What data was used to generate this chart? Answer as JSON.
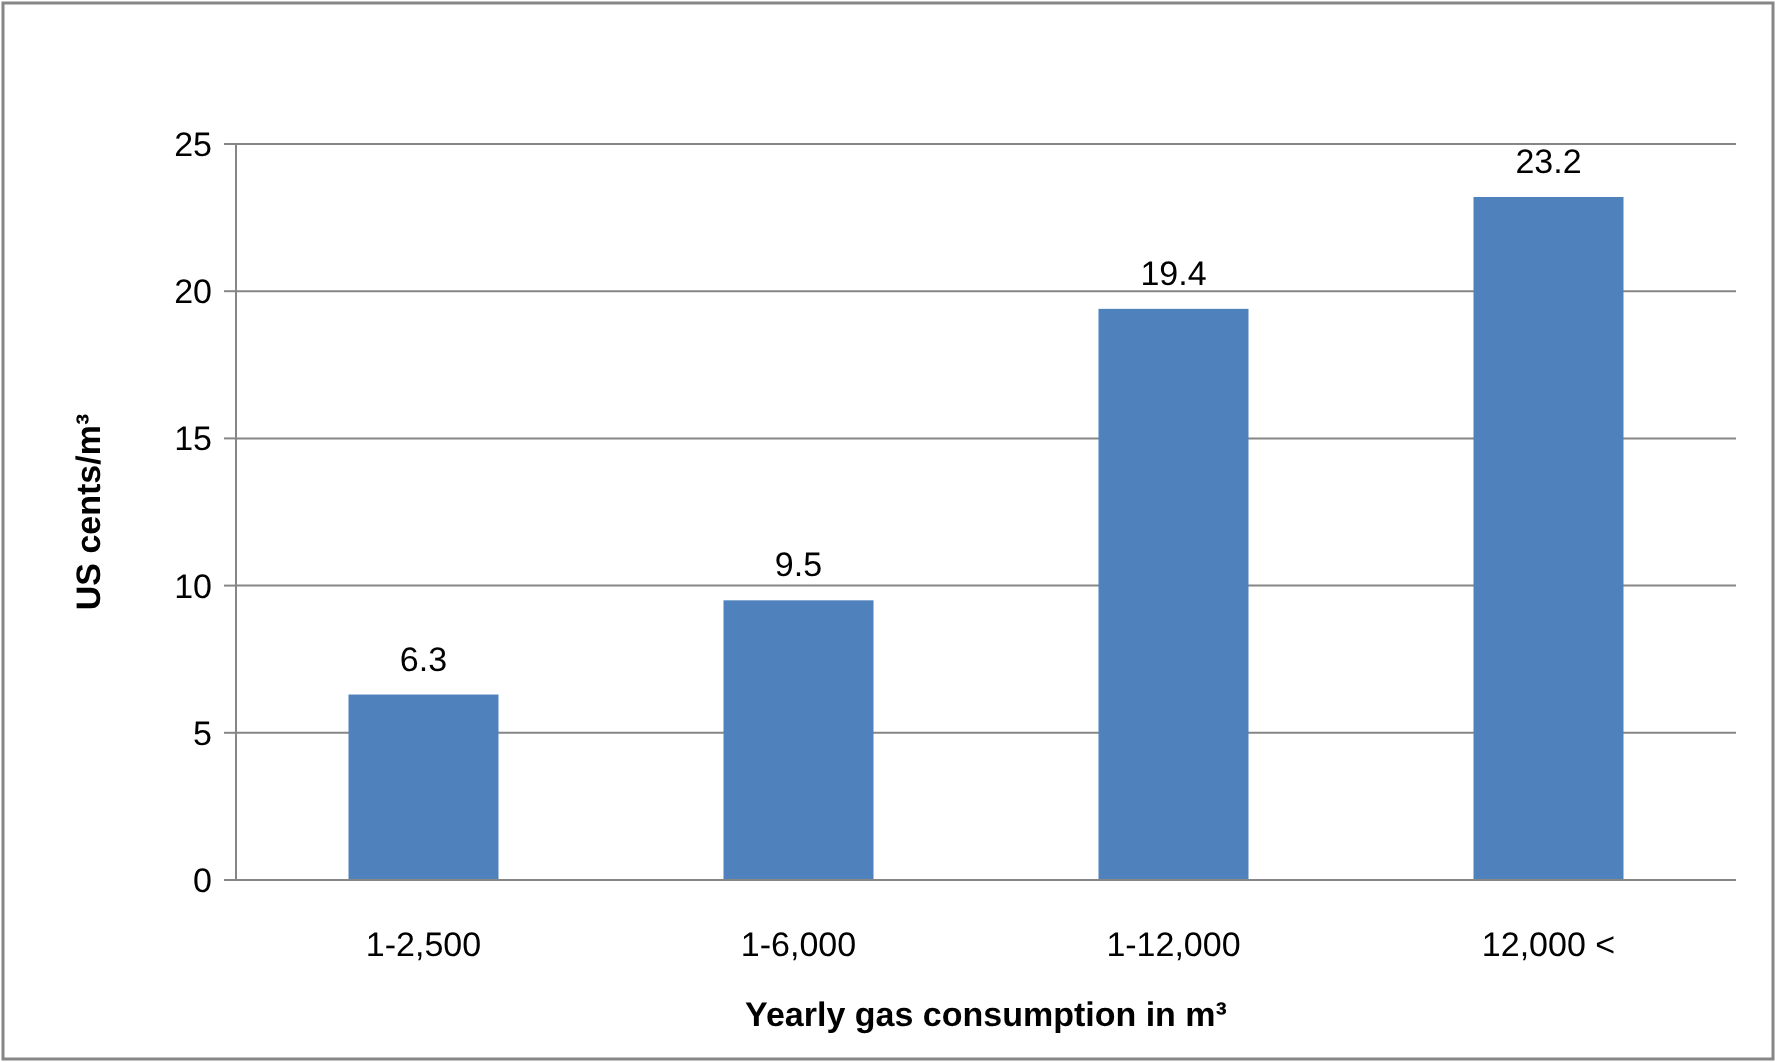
{
  "chart_data": {
    "type": "bar",
    "xlabel": "Yearly gas consumption in m³",
    "ylabel": "US cents/m³",
    "categories": [
      "1-2,500",
      "1-6,000",
      "1-12,000",
      "12,000 <"
    ],
    "values": [
      6.3,
      9.5,
      19.4,
      23.2
    ],
    "color": "#4f81bd",
    "ylim": [
      0,
      25
    ],
    "yticks": [
      0,
      5,
      10,
      15,
      20,
      25
    ],
    "grid": "y",
    "data_labels": true
  }
}
